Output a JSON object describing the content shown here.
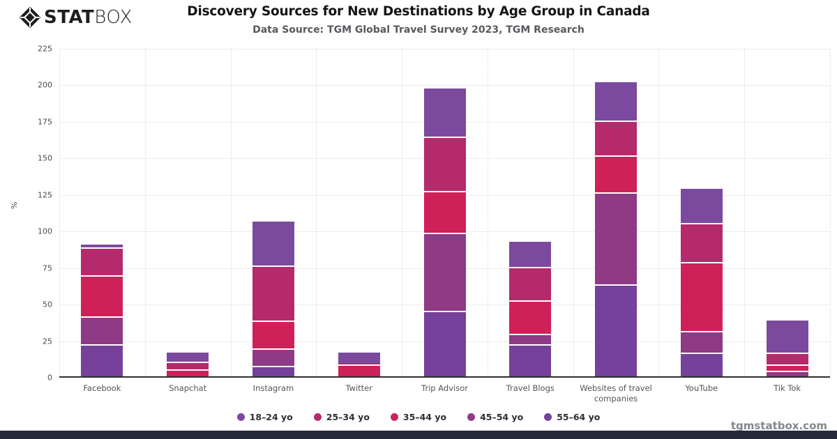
{
  "header": {
    "logo": {
      "stat": "STAT",
      "box": "BOX"
    }
  },
  "chart_data": {
    "type": "bar",
    "stacked": true,
    "stack_order": "first-series-on-top",
    "title": "Discovery Sources for New Destinations by Age Group in Canada",
    "subtitle": "Data Source: TGM Global Travel Survey 2023, TGM Research",
    "categories": [
      "Facebook",
      "Snapchat",
      "Instagram",
      "Twitter",
      "Trip Advisor",
      "Travel Blogs",
      "Websites of travel companies",
      "YouTube",
      "Tik Tok"
    ],
    "series": [
      {
        "name": "18–24 yo",
        "color": "#7b4a9e",
        "values": [
          3,
          7,
          31,
          8,
          34,
          18,
          27,
          24,
          23
        ]
      },
      {
        "name": "25–34 yo",
        "color": "#b42a6b",
        "values": [
          19,
          5,
          38,
          1,
          37,
          23,
          24,
          27,
          8
        ]
      },
      {
        "name": "35–44 yo",
        "color": "#cf2159",
        "values": [
          28,
          5,
          19,
          8,
          29,
          23,
          25,
          47,
          4
        ]
      },
      {
        "name": "45–54 yo",
        "color": "#8e3a85",
        "values": [
          19,
          0,
          12,
          0,
          53,
          7,
          63,
          15,
          4
        ]
      },
      {
        "name": "55–64 yo",
        "color": "#75419a",
        "values": [
          22,
          0,
          7,
          0,
          45,
          22,
          63,
          16,
          0
        ]
      }
    ],
    "totals": [
      91,
      17,
      107,
      17,
      198,
      93,
      202,
      129,
      39
    ],
    "ylabel": "%",
    "ylim": [
      0,
      225
    ],
    "ytick_step": 25,
    "grid": true,
    "legend_position": "bottom"
  },
  "footer": {
    "watermark": "tgmstatbox.com",
    "accent_bar_color": "#252a38"
  }
}
